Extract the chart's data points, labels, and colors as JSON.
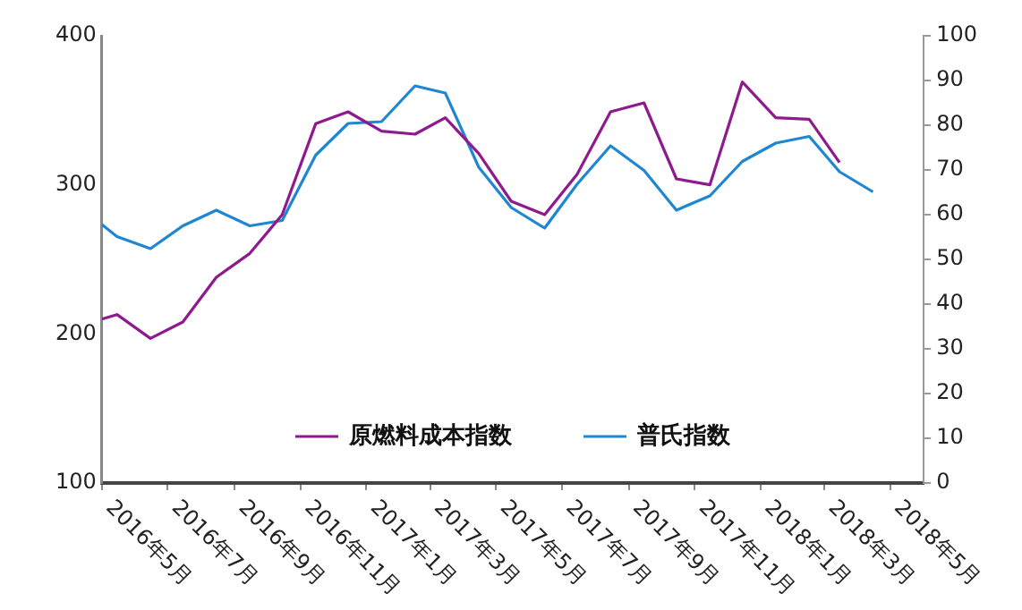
{
  "chart_data": {
    "type": "line",
    "x": [
      "2016-05-01",
      "2016-05-15",
      "2016-06-15",
      "2016-07-15",
      "2016-08-15",
      "2016-09-15",
      "2016-10-15",
      "2016-11-15",
      "2016-12-15",
      "2017-01-15",
      "2017-02-15",
      "2017-03-15",
      "2017-04-15",
      "2017-05-15",
      "2017-06-15",
      "2017-07-15",
      "2017-08-15",
      "2017-09-15",
      "2017-10-15",
      "2017-11-15",
      "2017-12-15",
      "2018-01-15",
      "2018-02-15",
      "2018-03-15",
      "2018-04-15"
    ],
    "series": [
      {
        "name": "原燃料成本指数",
        "color": "#8e1a8e",
        "values": [
          210,
          213,
          197,
          208,
          238,
          254,
          280,
          341,
          349,
          336,
          334,
          345,
          321,
          289,
          280,
          307,
          349,
          355,
          304,
          300,
          369,
          345,
          344,
          315,
          null
        ]
      },
      {
        "name": "普氏指数",
        "color": "#1f86d1",
        "axis": "y2",
        "values": [
          57.8,
          55.1,
          52.4,
          57.5,
          61,
          57.5,
          58.7,
          73.3,
          80.4,
          80.8,
          88.8,
          87.2,
          70.6,
          61.6,
          57,
          66.8,
          75.4,
          69.9,
          61,
          64.2,
          71.9,
          76,
          77.5,
          69.6,
          65.1
        ]
      }
    ],
    "xlim": [
      "2016-05-01",
      "2018-06-01"
    ],
    "xticks": [
      {
        "value": "2016-05",
        "label": "2016年5月"
      },
      {
        "value": "2016-07",
        "label": "2016年7月"
      },
      {
        "value": "2016-09",
        "label": "2016年9月"
      },
      {
        "value": "2016-11",
        "label": "2016年11月"
      },
      {
        "value": "2017-01",
        "label": "2017年1月"
      },
      {
        "value": "2017-03",
        "label": "2017年3月"
      },
      {
        "value": "2017-05",
        "label": "2017年5月"
      },
      {
        "value": "2017-07",
        "label": "2017年7月"
      },
      {
        "value": "2017-09",
        "label": "2017年9月"
      },
      {
        "value": "2017-11",
        "label": "2017年11月"
      },
      {
        "value": "2018-01",
        "label": "2018年1月"
      },
      {
        "value": "2018-03",
        "label": "2018年3月"
      },
      {
        "value": "2018-05",
        "label": "2018年5月"
      }
    ],
    "ylim": [
      100,
      400
    ],
    "yticks": [
      100,
      200,
      300,
      400
    ],
    "y2lim": [
      0,
      100
    ],
    "y2ticks": [
      0,
      10,
      20,
      30,
      40,
      50,
      60,
      70,
      80,
      90,
      100
    ],
    "grid": false,
    "legend": "bottom"
  }
}
